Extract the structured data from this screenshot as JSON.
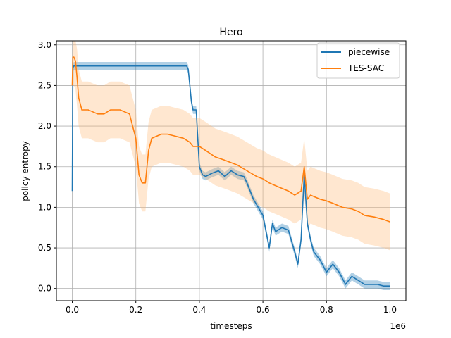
{
  "chart_data": {
    "type": "line",
    "title": "Hero",
    "xlabel": "timesteps",
    "ylabel": "policy entropy",
    "x_scale_label": "1e6",
    "xlim": [
      -0.05,
      1.05
    ],
    "ylim": [
      -0.15,
      3.05
    ],
    "xticks": [
      0.0,
      0.2,
      0.4,
      0.6,
      0.8,
      1.0
    ],
    "xtick_labels": [
      "0.0",
      "0.2",
      "0.4",
      "0.6",
      "0.8",
      "1.0"
    ],
    "yticks": [
      0.0,
      0.5,
      1.0,
      1.5,
      2.0,
      2.5,
      3.0
    ],
    "ytick_labels": [
      "0.0",
      "0.5",
      "1.0",
      "1.5",
      "2.0",
      "2.5",
      "3.0"
    ],
    "grid": true,
    "legend_position": "top-right",
    "series": [
      {
        "name": "piecewise",
        "color": "#1f77b4",
        "band_color": "#1f77b4",
        "x": [
          0.0,
          0.002,
          0.005,
          0.02,
          0.1,
          0.2,
          0.3,
          0.36,
          0.365,
          0.37,
          0.375,
          0.38,
          0.39,
          0.4,
          0.41,
          0.42,
          0.44,
          0.46,
          0.48,
          0.5,
          0.52,
          0.54,
          0.55,
          0.57,
          0.6,
          0.62,
          0.63,
          0.64,
          0.66,
          0.68,
          0.7,
          0.71,
          0.72,
          0.73,
          0.74,
          0.75,
          0.76,
          0.78,
          0.8,
          0.82,
          0.84,
          0.86,
          0.88,
          0.9,
          0.92,
          0.94,
          0.96,
          0.98,
          1.0
        ],
        "y": [
          1.2,
          2.72,
          2.74,
          2.74,
          2.74,
          2.74,
          2.74,
          2.74,
          2.7,
          2.5,
          2.3,
          2.2,
          2.2,
          1.5,
          1.4,
          1.38,
          1.42,
          1.45,
          1.38,
          1.45,
          1.4,
          1.38,
          1.3,
          1.1,
          0.9,
          0.5,
          0.8,
          0.7,
          0.75,
          0.72,
          0.45,
          0.3,
          0.6,
          1.4,
          0.8,
          0.6,
          0.45,
          0.35,
          0.2,
          0.3,
          0.2,
          0.05,
          0.15,
          0.1,
          0.05,
          0.05,
          0.05,
          0.03,
          0.03
        ],
        "band_half_width": 0.05
      },
      {
        "name": "TES-SAC",
        "color": "#ff7f0e",
        "band_color": "#ffbb78",
        "x": [
          0.0,
          0.002,
          0.005,
          0.01,
          0.015,
          0.02,
          0.03,
          0.05,
          0.08,
          0.1,
          0.12,
          0.15,
          0.18,
          0.19,
          0.2,
          0.21,
          0.22,
          0.23,
          0.24,
          0.25,
          0.28,
          0.3,
          0.32,
          0.35,
          0.37,
          0.38,
          0.4,
          0.42,
          0.45,
          0.48,
          0.5,
          0.52,
          0.55,
          0.58,
          0.6,
          0.62,
          0.65,
          0.68,
          0.7,
          0.72,
          0.73,
          0.74,
          0.75,
          0.78,
          0.8,
          0.82,
          0.85,
          0.88,
          0.9,
          0.92,
          0.95,
          0.98,
          1.0
        ],
        "y": [
          2.5,
          2.85,
          2.85,
          2.8,
          2.6,
          2.35,
          2.2,
          2.2,
          2.15,
          2.15,
          2.2,
          2.2,
          2.15,
          2.0,
          1.85,
          1.4,
          1.3,
          1.3,
          1.7,
          1.85,
          1.9,
          1.9,
          1.88,
          1.85,
          1.8,
          1.75,
          1.75,
          1.7,
          1.62,
          1.58,
          1.55,
          1.52,
          1.45,
          1.38,
          1.35,
          1.3,
          1.25,
          1.2,
          1.15,
          1.2,
          1.5,
          1.1,
          1.15,
          1.1,
          1.08,
          1.05,
          1.0,
          0.98,
          0.95,
          0.9,
          0.88,
          0.85,
          0.82
        ],
        "band_half_width": 0.35
      }
    ]
  }
}
